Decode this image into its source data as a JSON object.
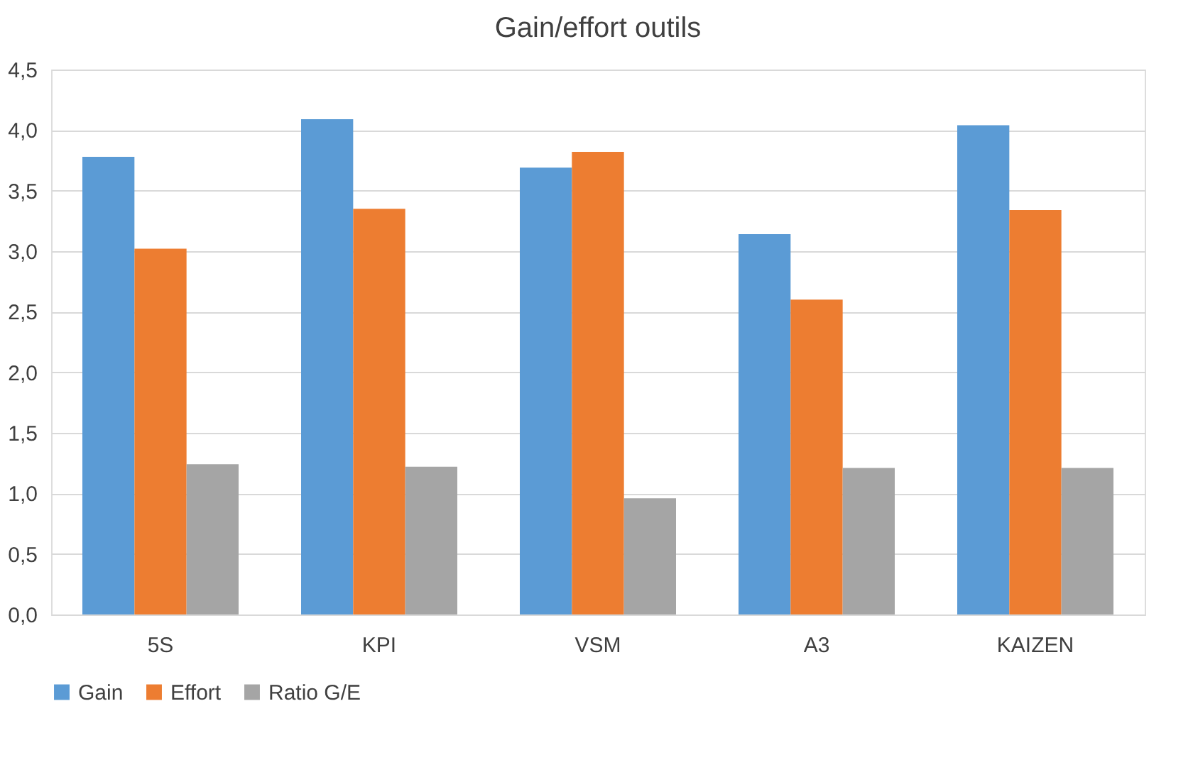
{
  "chart_data": {
    "type": "bar",
    "title": "Gain/effort outils",
    "categories": [
      "5S",
      "KPI",
      "VSM",
      "A3",
      "KAIZEN"
    ],
    "series": [
      {
        "name": "Gain",
        "color": "#5b9bd5",
        "values": [
          3.78,
          4.09,
          3.69,
          3.14,
          4.04
        ]
      },
      {
        "name": "Effort",
        "color": "#ed7d31",
        "values": [
          3.02,
          3.35,
          3.82,
          2.6,
          3.34
        ]
      },
      {
        "name": "Ratio G/E",
        "color": "#a5a5a5",
        "values": [
          1.24,
          1.22,
          0.96,
          1.21,
          1.21
        ]
      }
    ],
    "ylim": [
      0,
      4.5
    ],
    "yticks": [
      {
        "value": 0,
        "label": "0,0"
      },
      {
        "value": 0.5,
        "label": "0,5"
      },
      {
        "value": 1,
        "label": "1,0"
      },
      {
        "value": 1.5,
        "label": "1,5"
      },
      {
        "value": 2,
        "label": "2,0"
      },
      {
        "value": 2.5,
        "label": "2,5"
      },
      {
        "value": 3,
        "label": "3,0"
      },
      {
        "value": 3.5,
        "label": "3,5"
      },
      {
        "value": 4,
        "label": "4,0"
      },
      {
        "value": 4.5,
        "label": "4,5"
      }
    ],
    "grid": "y",
    "legend": "bottom"
  }
}
